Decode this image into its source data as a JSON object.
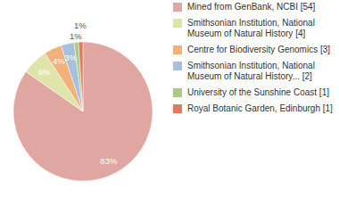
{
  "chart_data": {
    "type": "pie",
    "categories": [
      "Mined from GenBank, NCBI [54]",
      "Smithsonian Institution, National Museum of Natural History [4]",
      "Centre for Biodiversity Genomics [3]",
      "Smithsonian Institution, National Museum of Natural History... [2]",
      "University of the Sunshine Coast [1]",
      "Royal Botanic Garden, Edinburgh [1]"
    ],
    "values": [
      83,
      6,
      4,
      3,
      1,
      1
    ],
    "value_labels": [
      "83%",
      "6%",
      "4%",
      "3%",
      "1%",
      "1%"
    ],
    "data_labels": true,
    "legend": "right",
    "colors": [
      "#e0a6a1",
      "#dfe4a9",
      "#f2b07a",
      "#a9c0dc",
      "#a8cd82",
      "#e07b62"
    ]
  }
}
